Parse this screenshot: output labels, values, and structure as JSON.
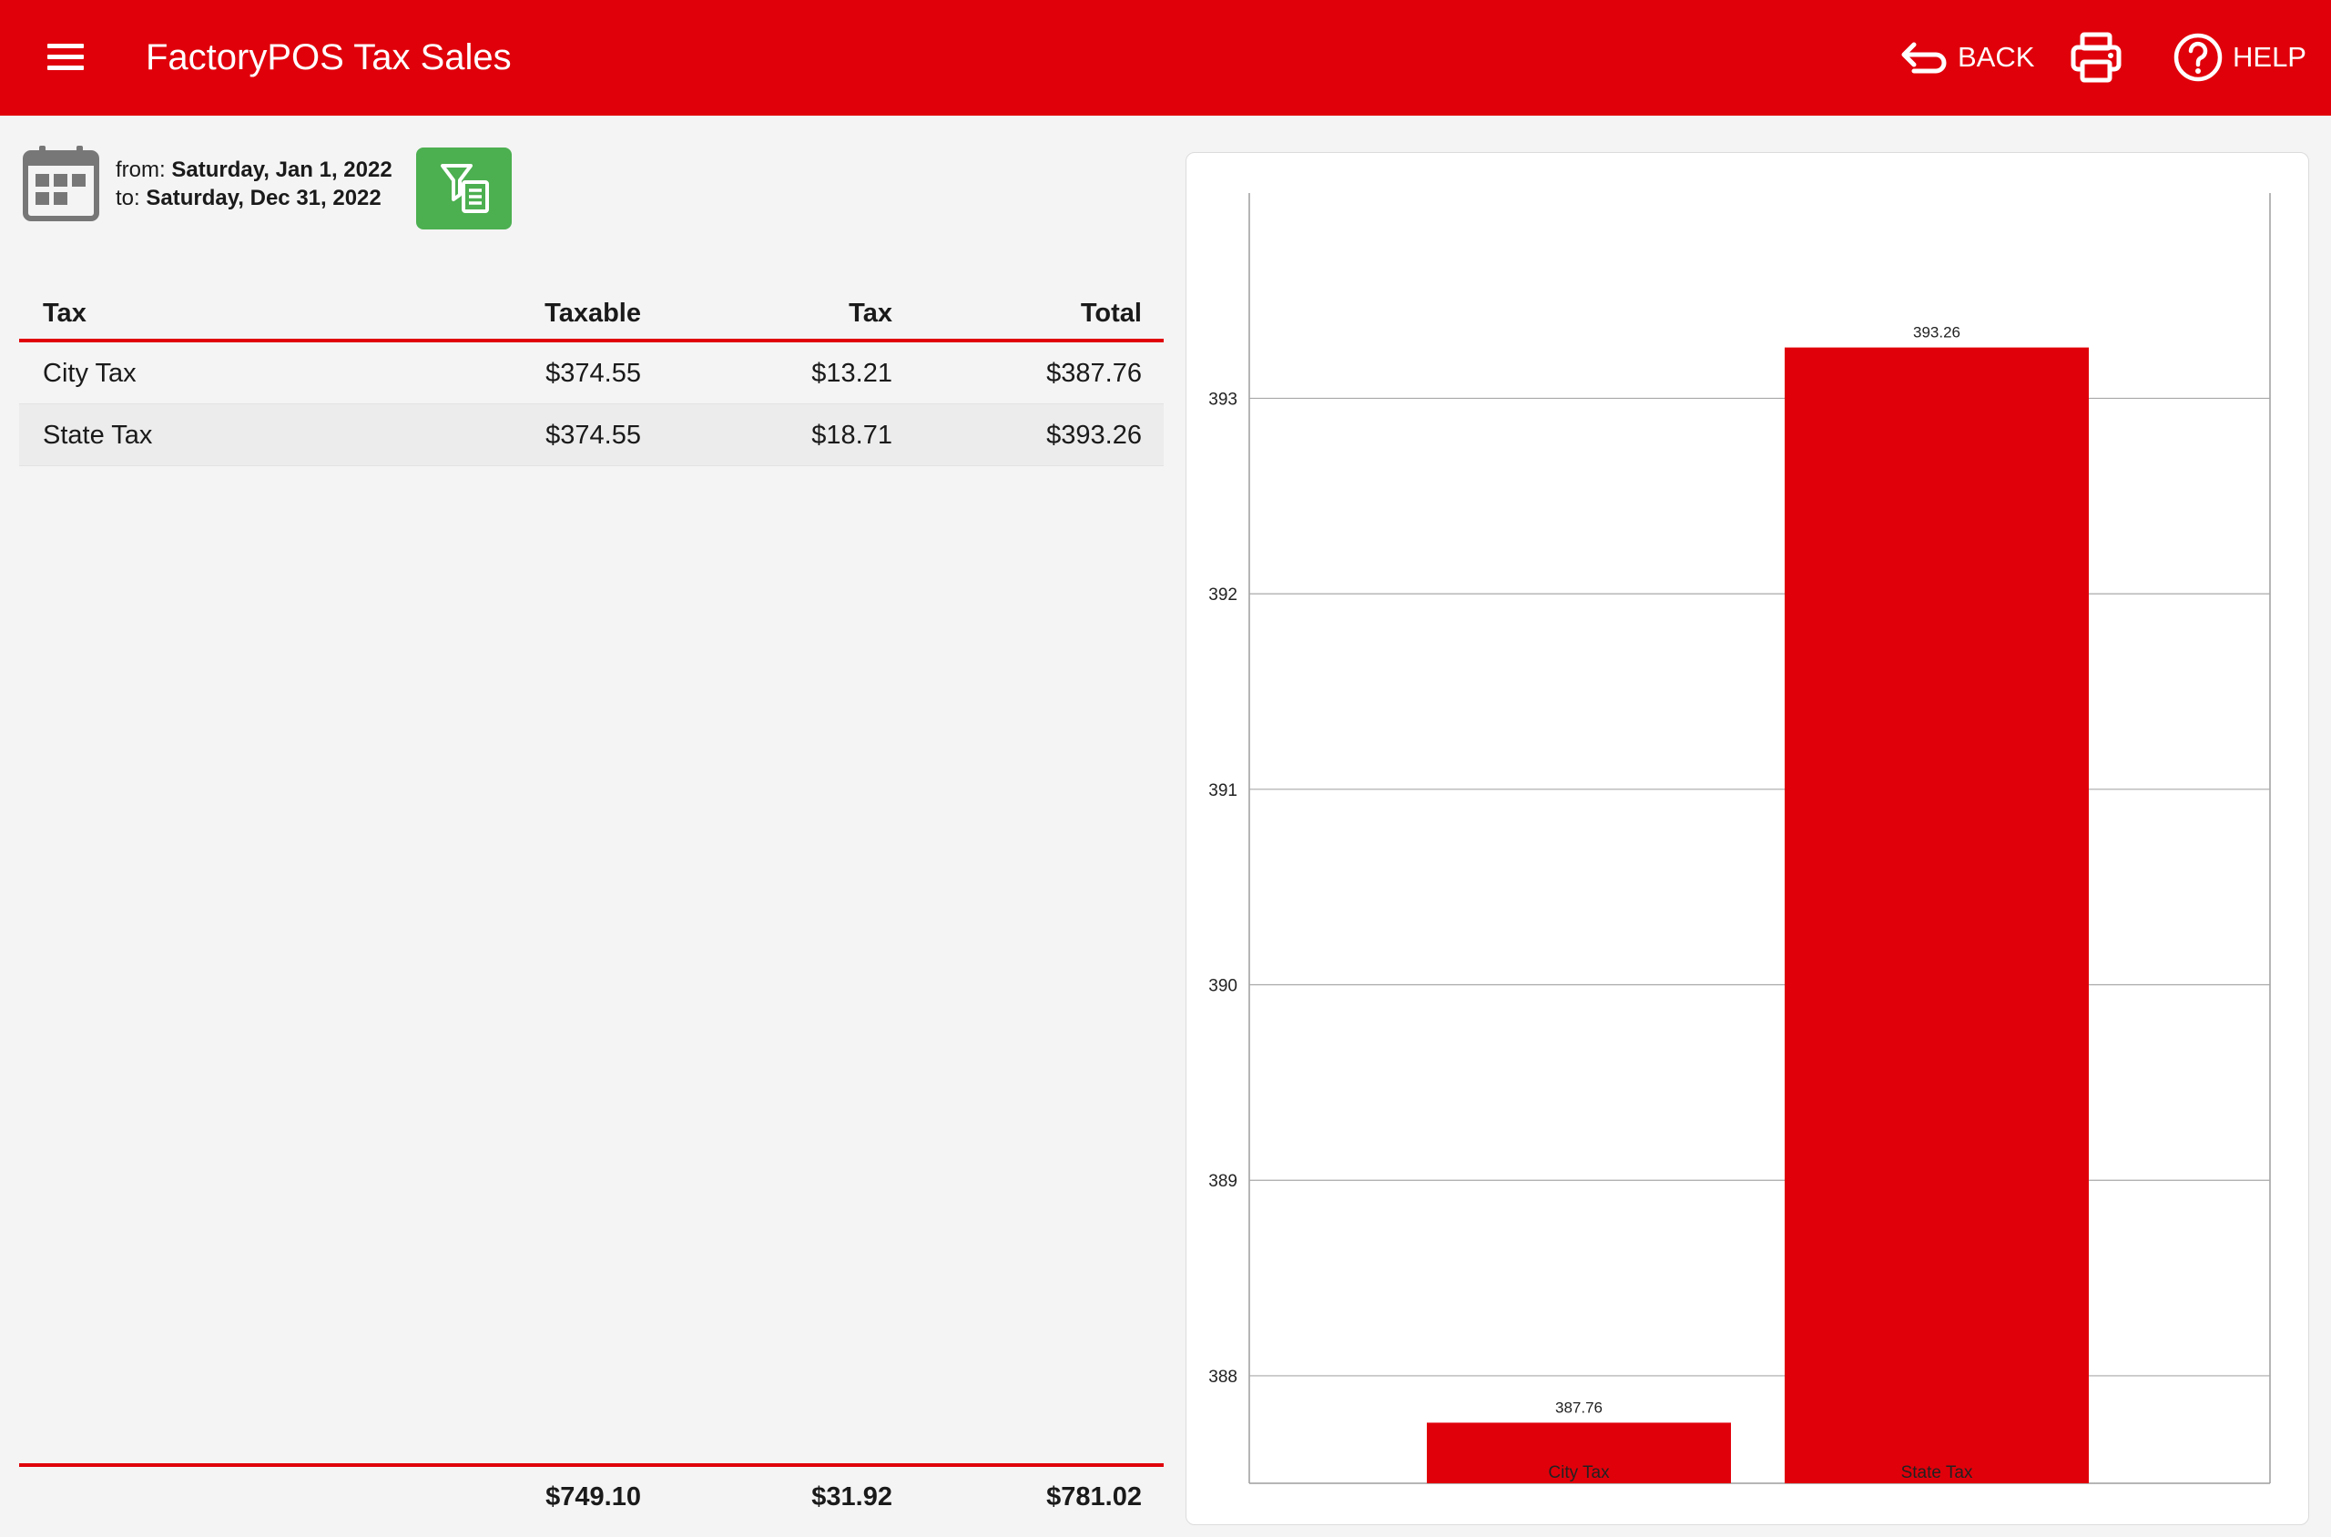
{
  "header": {
    "title": "FactoryPOS Tax Sales",
    "back_label": "BACK",
    "help_label": "HELP",
    "bar_color": "#e0000a"
  },
  "date_range": {
    "from_prefix": "from:",
    "from_value": "Saturday, Jan 1, 2022",
    "to_prefix": "to:",
    "to_value": "Saturday, Dec 31, 2022"
  },
  "table": {
    "columns": {
      "name": "Tax",
      "taxable": "Taxable",
      "tax": "Tax",
      "total": "Total"
    },
    "rows": [
      {
        "name": "City Tax",
        "taxable": "$374.55",
        "tax": "$13.21",
        "total": "$387.76"
      },
      {
        "name": "State Tax",
        "taxable": "$374.55",
        "tax": "$18.71",
        "total": "$393.26"
      }
    ],
    "totals": {
      "taxable": "$749.10",
      "tax": "$31.92",
      "total": "$781.02"
    }
  },
  "icons": {
    "menu": "menu-icon",
    "back": "back-arrow-icon",
    "print": "printer-icon",
    "help": "help-circle-icon",
    "calendar": "calendar-icon",
    "filter": "filter-report-icon"
  },
  "colors": {
    "accent": "#e0000a",
    "filter_button": "#4caf50"
  },
  "chart_data": {
    "type": "bar",
    "categories": [
      "City Tax",
      "State Tax"
    ],
    "values": [
      387.76,
      393.26
    ],
    "value_labels": [
      "387.76",
      "393.26"
    ],
    "ylim": [
      387.45,
      394.05
    ],
    "yticks": [
      388,
      389,
      390,
      391,
      392,
      393
    ],
    "grid": true,
    "bar_color": "#e0000a"
  }
}
